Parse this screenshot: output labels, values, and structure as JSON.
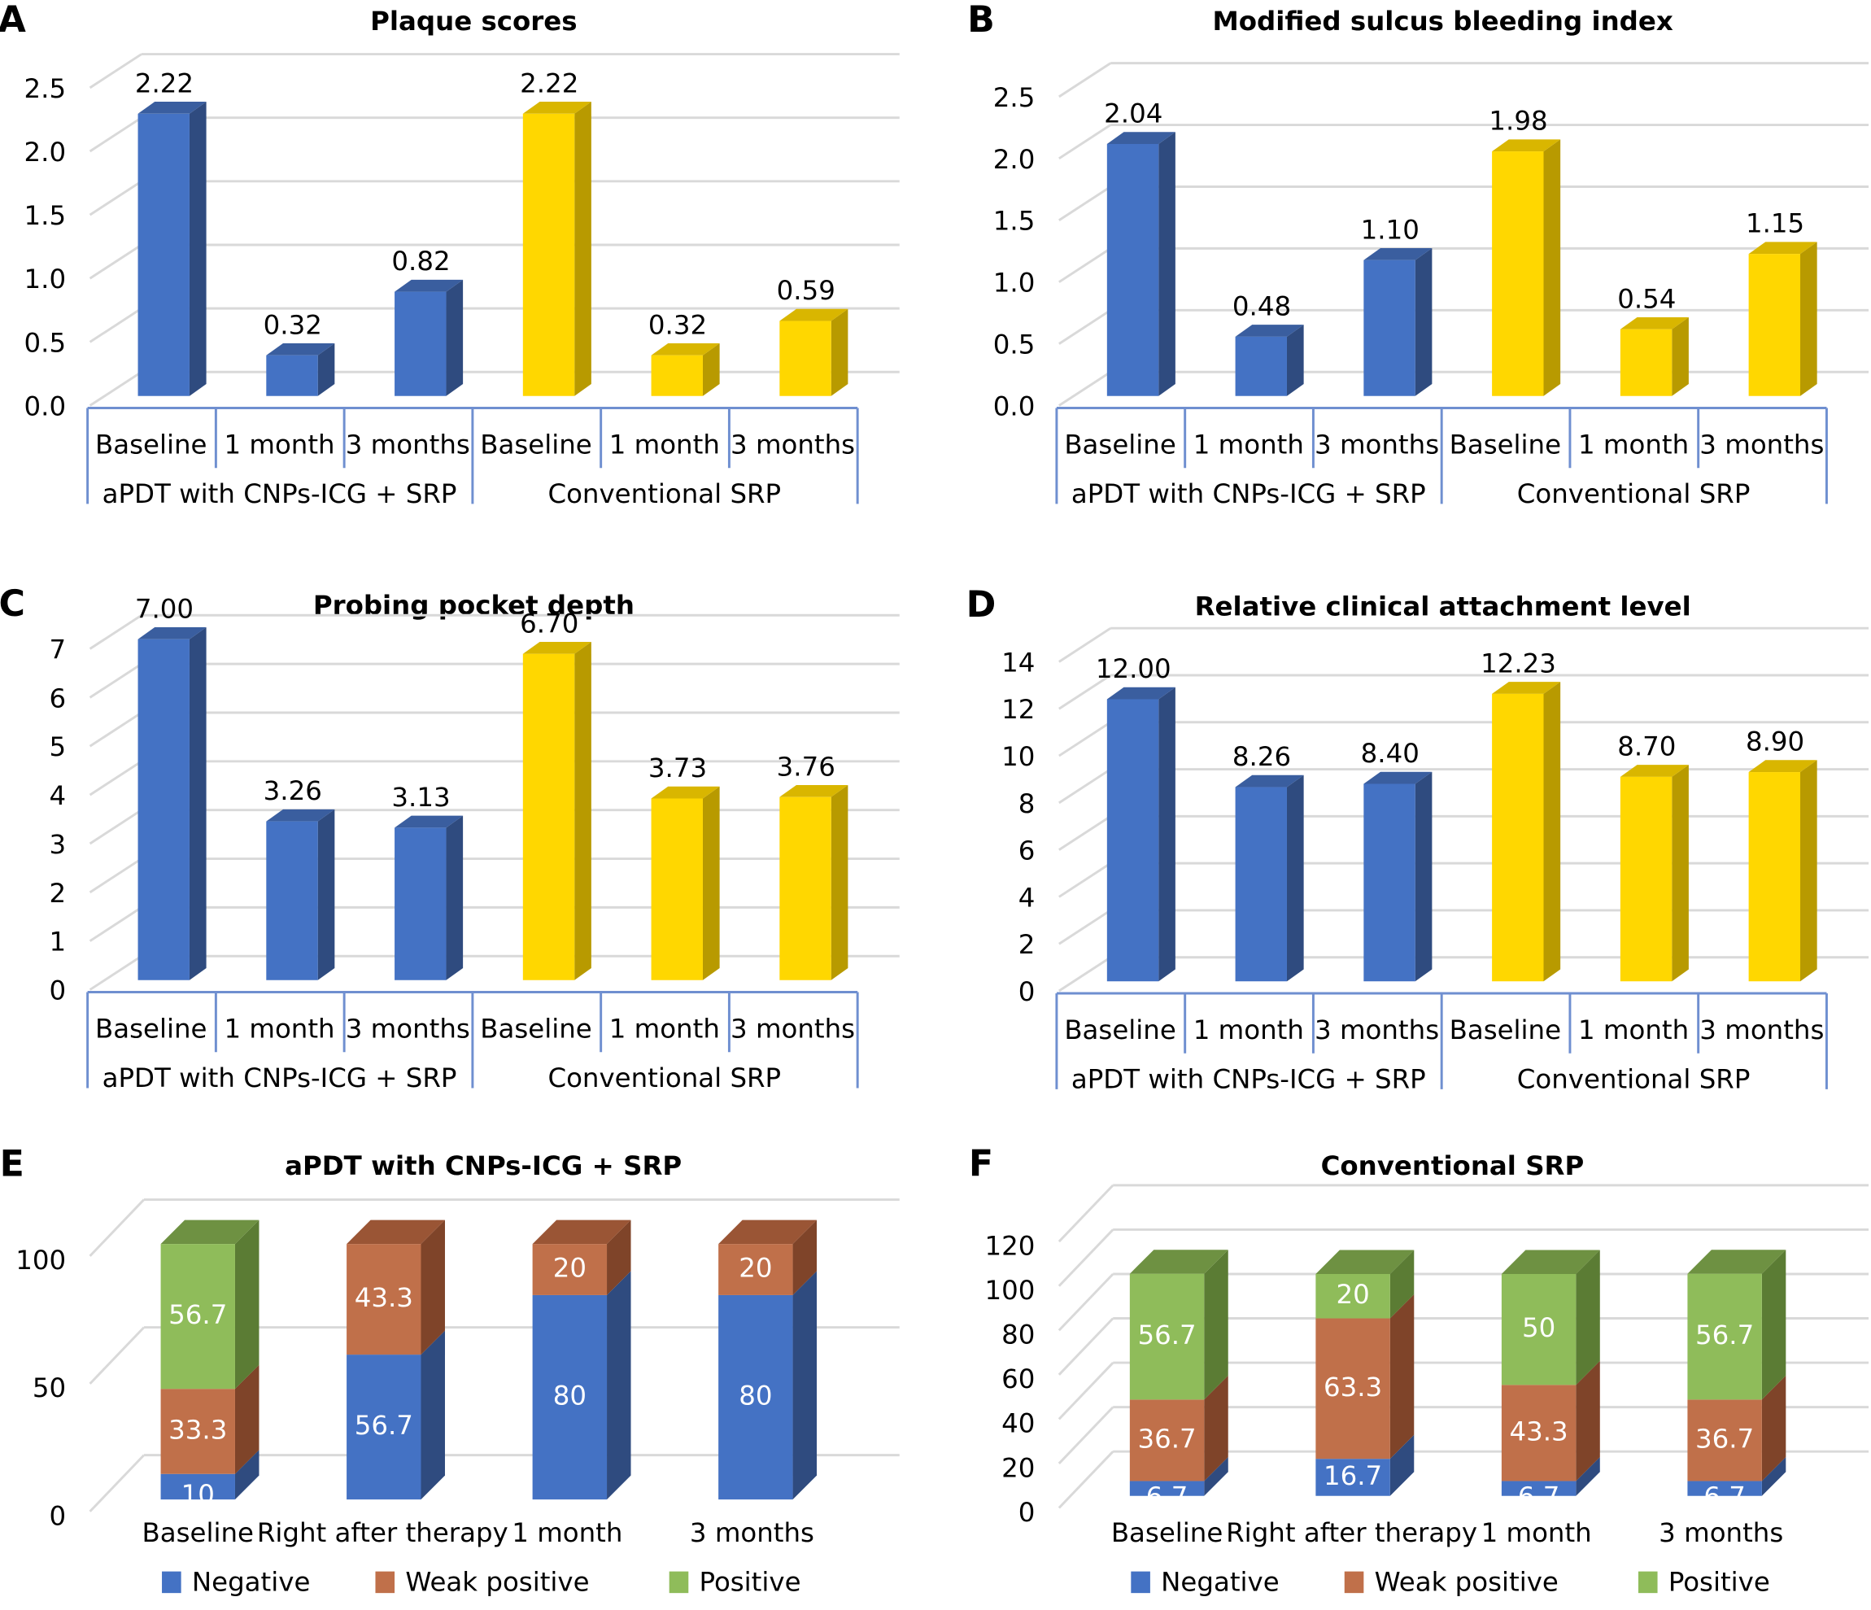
{
  "colors": {
    "blue": "#4472C4",
    "yellow": "#FFD700",
    "negative": "#4472C4",
    "weak_positive": "#C0704A",
    "positive": "#8FBC5A"
  },
  "chart_data": [
    {
      "panel": "A",
      "type": "bar",
      "title": "Plaque scores",
      "categories": [
        "Baseline",
        "1 month",
        "3 months",
        "Baseline",
        "1 month",
        "3 months"
      ],
      "groups": [
        "aPDT with CNPs-ICG + SRP",
        "Conventional SRP"
      ],
      "values": [
        2.22,
        0.32,
        0.82,
        2.22,
        0.32,
        0.59
      ],
      "value_labels": [
        "2.22",
        "0.32",
        "0.82",
        "2.22",
        "0.32",
        "0.59"
      ],
      "yticks": [
        "0.0",
        "0.5",
        "1.0",
        "1.5",
        "2.0",
        "2.5"
      ],
      "ylim": [
        0,
        2.5
      ],
      "grid": true,
      "style": "3d"
    },
    {
      "panel": "B",
      "type": "bar",
      "title": "Modified sulcus bleeding index",
      "categories": [
        "Baseline",
        "1 month",
        "3 months",
        "Baseline",
        "1 month",
        "3 months"
      ],
      "groups": [
        "aPDT with CNPs-ICG + SRP",
        "Conventional SRP"
      ],
      "values": [
        2.04,
        0.48,
        1.1,
        1.98,
        0.54,
        1.15
      ],
      "value_labels": [
        "2.04",
        "0.48",
        "1.10",
        "1.98",
        "0.54",
        "1.15"
      ],
      "yticks": [
        "0.0",
        "0.5",
        "1.0",
        "1.5",
        "2.0",
        "2.5"
      ],
      "ylim": [
        0,
        2.5
      ],
      "grid": true,
      "style": "3d"
    },
    {
      "panel": "C",
      "type": "bar",
      "title": "Probing pocket depth",
      "categories": [
        "Baseline",
        "1 month",
        "3 months",
        "Baseline",
        "1 month",
        "3 months"
      ],
      "groups": [
        "aPDT with CNPs-ICG + SRP",
        "Conventional SRP"
      ],
      "values": [
        7.0,
        3.26,
        3.13,
        6.7,
        3.73,
        3.76
      ],
      "value_labels": [
        "7.00",
        "3.26",
        "3.13",
        "6.70",
        "3.73",
        "3.76"
      ],
      "yticks": [
        "0",
        "1",
        "2",
        "3",
        "4",
        "5",
        "6",
        "7"
      ],
      "ylim": [
        0,
        7
      ],
      "grid": true,
      "style": "3d"
    },
    {
      "panel": "D",
      "type": "bar",
      "title": "Relative clinical attachment level",
      "categories": [
        "Baseline",
        "1 month",
        "3 months",
        "Baseline",
        "1 month",
        "3 months"
      ],
      "groups": [
        "aPDT with CNPs-ICG + SRP",
        "Conventional SRP"
      ],
      "values": [
        12.0,
        8.26,
        8.4,
        12.23,
        8.7,
        8.9
      ],
      "value_labels": [
        "12.00",
        "8.26",
        "8.40",
        "12.23",
        "8.70",
        "8.90"
      ],
      "yticks": [
        "0",
        "2",
        "4",
        "6",
        "8",
        "10",
        "12",
        "14"
      ],
      "ylim": [
        0,
        14
      ],
      "grid": true,
      "style": "3d"
    },
    {
      "panel": "E",
      "type": "bar",
      "stacked": true,
      "title": "aPDT with CNPs-ICG + SRP",
      "categories": [
        "Baseline",
        "Right after therapy",
        "1 month",
        "3 months"
      ],
      "series": [
        {
          "name": "Negative",
          "values": [
            10,
            56.7,
            80,
            80
          ],
          "labels": [
            "10",
            "56.7",
            "80",
            "80"
          ]
        },
        {
          "name": "Weak positive",
          "values": [
            33.3,
            43.3,
            20,
            20
          ],
          "labels": [
            "33.3",
            "43.3",
            "20",
            "20"
          ]
        },
        {
          "name": "Positive",
          "values": [
            56.7,
            0,
            0,
            0
          ],
          "labels": [
            "56.7",
            "",
            "",
            ""
          ]
        }
      ],
      "yticks": [
        "0",
        "50",
        "100"
      ],
      "ylim": [
        0,
        100
      ],
      "legend": "bottom",
      "grid": true
    },
    {
      "panel": "F",
      "type": "bar",
      "stacked": true,
      "title": "Conventional SRP",
      "categories": [
        "Baseline",
        "Right after therapy",
        "1 month",
        "3 months"
      ],
      "series": [
        {
          "name": "Negative",
          "values": [
            6.7,
            16.7,
            6.7,
            6.7
          ],
          "labels": [
            "6.7",
            "16.7",
            "6.7",
            "6.7"
          ]
        },
        {
          "name": "Weak positive",
          "values": [
            36.7,
            63.3,
            43.3,
            36.7
          ],
          "labels": [
            "36.7",
            "63.3",
            "43.3",
            "36.7"
          ]
        },
        {
          "name": "Positive",
          "values": [
            56.7,
            20,
            50,
            56.7
          ],
          "labels": [
            "56.7",
            "20",
            "50",
            "56.7"
          ]
        }
      ],
      "yticks": [
        "0",
        "20",
        "40",
        "60",
        "80",
        "100",
        "120"
      ],
      "ylim": [
        0,
        120
      ],
      "legend": "bottom",
      "grid": true
    }
  ]
}
